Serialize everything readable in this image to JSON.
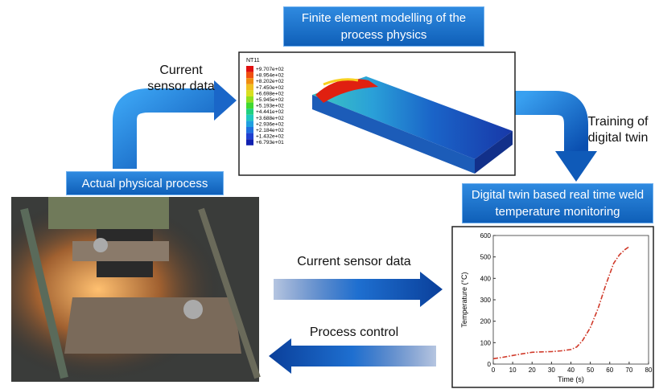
{
  "diagram": {
    "fe_title": "Finite element modelling of the process physics",
    "sensor_top": "Current sensor data",
    "training": "Training of digital twin",
    "physical": "Actual physical process",
    "twin_title": "Digital twin based real time weld temperature monitoring",
    "sensor_mid": "Current sensor data",
    "control": "Process control",
    "fe_legend": {
      "title": "NT11",
      "values": [
        "+9.707e+02",
        "+8.954e+02",
        "+8.202e+02",
        "+7.450e+02",
        "+6.698e+02",
        "+5.945e+02",
        "+5.193e+02",
        "+4.441e+02",
        "+3.688e+02",
        "+2.936e+02",
        "+2.184e+02",
        "+1.432e+02",
        "+6.793e+01"
      ]
    }
  },
  "chart_data": {
    "type": "line",
    "x": [
      0,
      5,
      10,
      15,
      20,
      25,
      30,
      35,
      40,
      43,
      46,
      50,
      54,
      58,
      62,
      65,
      68,
      70
    ],
    "values": [
      25,
      32,
      40,
      48,
      55,
      57,
      58,
      62,
      68,
      80,
      110,
      170,
      260,
      370,
      470,
      510,
      535,
      548
    ],
    "color": "#d03a2a",
    "xlim": [
      0,
      80
    ],
    "ylim": [
      0,
      600
    ],
    "xticks": [
      0,
      10,
      20,
      30,
      40,
      50,
      60,
      70,
      80
    ],
    "yticks": [
      0,
      100,
      200,
      300,
      400,
      500,
      600
    ],
    "xlabel": "Time (s)",
    "ylabel": "Temperature (°C)"
  }
}
